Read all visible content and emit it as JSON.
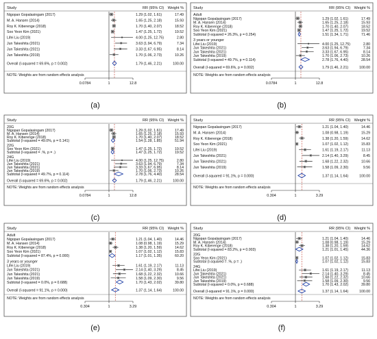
{
  "figure": {
    "panel_labels": [
      "(a)",
      "(b)",
      "(c)",
      "(d)",
      "(e)",
      "(f)"
    ]
  },
  "colors": {
    "frame": "#555555",
    "ci_line": "#222222",
    "box": "#888888",
    "diamond": "#1f3fa6",
    "null_line": "#222222",
    "dashed_line": "#c0392b",
    "text": "#111111"
  },
  "chart_data": [
    {
      "type": "forest",
      "panel": "(a)",
      "header": {
        "study": "Study",
        "rr": "RR (95% CI)",
        "weight": "Weight %"
      },
      "axis": {
        "type": "log",
        "ticks": [
          "0.0784",
          "1",
          "12.8"
        ],
        "tick_values": [
          0.0784,
          1,
          12.8
        ]
      },
      "groups": [
        {
          "label": "",
          "rows": [
            {
              "label": "Nigopan Gopalasingam (2017)",
              "rr": 1.29,
              "lo": 1.02,
              "hi": 1.61,
              "rr_text": "1.29 (1.02, 1.61)",
              "weight": "17.49"
            },
            {
              "label": "M. A. Hansen (2014)",
              "rr": 1.65,
              "lo": 1.25,
              "hi": 2.18,
              "rr_text": "1.65 (1.25, 2.18)",
              "weight": "15.93"
            },
            {
              "label": "Roy K. Kiberenge (2018)",
              "rr": 1.7,
              "lo": 1.4,
              "hi": 2.07,
              "rr_text": "1.70 (1.40, 2.07)",
              "weight": "18.52"
            },
            {
              "label": "Soo Yeon Kim (2021)",
              "rr": 1.47,
              "lo": 1.25,
              "hi": 1.72,
              "rr_text": "1.47 (1.25, 1.72)",
              "weight": "19.52"
            },
            {
              "label": "Lifei Liu (2019)",
              "rr": 4.0,
              "lo": 1.25,
              "hi": 12.75,
              "rr_text": "4.00 (1.25, 12.75)",
              "weight": "2.80"
            },
            {
              "label": "Jun Takeshita (2021)",
              "rr": 3.63,
              "lo": 1.94,
              "hi": 6.79,
              "rr_text": "3.63 (1.94, 6.79)",
              "weight": "7.34"
            },
            {
              "label": "Jun Takeshita (2021)",
              "rr": 3.33,
              "lo": 1.67,
              "hi": 6.95,
              "rr_text": "3.33 (1.67, 6.95)",
              "weight": "8.14"
            },
            {
              "label": "Jun Takeshita (2019)",
              "rr": 1.7,
              "lo": 1.06,
              "hi": 2.73,
              "rr_text": "1.70 (1.06, 2.73)",
              "weight": "10.26"
            }
          ]
        }
      ],
      "overall": {
        "label": "Overall (I-squared = 69.6%, p = 0.002)",
        "rr": 1.79,
        "lo": 1.46,
        "hi": 2.21,
        "rr_text": "1.79 (1.46, 2.21)",
        "weight": "100.00"
      },
      "note": "NOTE: Weights are from random effects analysis"
    },
    {
      "type": "forest",
      "panel": "(b)",
      "header": {
        "study": "Study",
        "rr": "RR (95% CI)",
        "weight": "Weight %"
      },
      "axis": {
        "type": "log",
        "ticks": [
          "0.0784",
          "1",
          "12.8"
        ],
        "tick_values": [
          0.0784,
          1,
          12.8
        ]
      },
      "groups": [
        {
          "label": "Adult",
          "rows": [
            {
              "label": "Nigopan Gopalasingam (2017)",
              "rr": 1.29,
              "lo": 1.02,
              "hi": 1.61,
              "rr_text": "1.29 (1.02, 1.61)",
              "weight": "17.49"
            },
            {
              "label": "M. A. Hansen (2014)",
              "rr": 1.65,
              "lo": 1.25,
              "hi": 2.18,
              "rr_text": "1.65 (1.25, 2.18)",
              "weight": "15.93"
            },
            {
              "label": "Roy K. Kiberenge (2018)",
              "rr": 1.7,
              "lo": 1.4,
              "hi": 2.07,
              "rr_text": "1.70 (1.40, 2.07)",
              "weight": "18.52"
            },
            {
              "label": "Soo Yeon Kim (2021)",
              "rr": 1.47,
              "lo": 1.25,
              "hi": 1.72,
              "rr_text": "1.47 (1.25, 1.72)",
              "weight": "19.52"
            }
          ],
          "subtotal": {
            "label": "Subtotal (I-squared = 26.3%, p = 0.254)",
            "rr": 1.51,
            "lo": 1.34,
            "hi": 1.71,
            "rr_text": "1.51 (1.34, 1.71)",
            "weight": "71.46"
          }
        },
        {
          "label": "3 years or younger",
          "rows": [
            {
              "label": "Lifei Liu (2019)",
              "rr": 4.0,
              "lo": 1.25,
              "hi": 12.75,
              "rr_text": "4.00 (1.25, 12.75)",
              "weight": "2.80"
            },
            {
              "label": "Jun Takeshita (2021)",
              "rr": 3.63,
              "lo": 1.94,
              "hi": 6.79,
              "rr_text": "3.63 (1.94, 6.79)",
              "weight": "7.34"
            },
            {
              "label": "Jun Takeshita (2021)",
              "rr": 3.33,
              "lo": 1.67,
              "hi": 6.95,
              "rr_text": "3.33 (1.67, 6.95)",
              "weight": "8.14"
            },
            {
              "label": "Jun Takeshita (2019)",
              "rr": 1.7,
              "lo": 1.06,
              "hi": 2.73,
              "rr_text": "1.70 (1.06, 2.73)",
              "weight": "10.26"
            }
          ],
          "subtotal": {
            "label": "Subtotal (I-squared = 49.7%, p = 0.114)",
            "rr": 2.78,
            "lo": 1.76,
            "hi": 4.4,
            "rr_text": "2.78 (1.76, 4.40)",
            "weight": "28.54"
          }
        }
      ],
      "overall": {
        "label": "Overall (I-squared = 69.6%, p = 0.002)",
        "rr": 1.79,
        "lo": 1.46,
        "hi": 2.21,
        "rr_text": "1.79 (1.46, 2.21)",
        "weight": "100.00"
      },
      "note": "NOTE: Weights are from random effects analysis"
    },
    {
      "type": "forest",
      "panel": "(c)",
      "header": {
        "study": "Study",
        "rr": "RR (95% CI)",
        "weight": "Weight %"
      },
      "axis": {
        "type": "log",
        "ticks": [
          "0.0784",
          "1",
          "12.8"
        ],
        "tick_values": [
          0.0784,
          1,
          12.8
        ]
      },
      "groups": [
        {
          "label": "20G",
          "rows": [
            {
              "label": "Nigopan Gopalasingam (2017)",
              "rr": 1.29,
              "lo": 1.02,
              "hi": 1.61,
              "rr_text": "1.29 (1.02, 1.61)",
              "weight": "17.49"
            },
            {
              "label": "M. A. Hansen (2014)",
              "rr": 1.65,
              "lo": 1.25,
              "hi": 2.18,
              "rr_text": "1.65 (1.25, 2.18)",
              "weight": "15.93"
            },
            {
              "label": "Roy K. Kiberenge (2018)",
              "rr": 1.7,
              "lo": 1.4,
              "hi": 2.07,
              "rr_text": "1.70 (1.40, 2.07)",
              "weight": "18.52"
            }
          ],
          "subtotal": {
            "label": "Subtotal (I-squared = 49.0%, p = 0.141)",
            "rr": 1.54,
            "lo": 1.28,
            "hi": 1.85,
            "rr_text": "1.54 (1.28, 1.85)",
            "weight": "51.94"
          }
        },
        {
          "label": "22G",
          "rows": [
            {
              "label": "Soo Yeon Kim (2021)",
              "rr": 1.47,
              "lo": 1.25,
              "hi": 1.72,
              "rr_text": "1.47 (1.25, 1.72)",
              "weight": "19.52"
            }
          ],
          "subtotal": {
            "label": "Subtotal (I-squared = .%, p = .)",
            "rr": 1.47,
            "lo": 1.25,
            "hi": 1.72,
            "rr_text": "1.47 (1.25, 1.72)",
            "weight": "19.52"
          }
        },
        {
          "label": "24G",
          "rows": [
            {
              "label": "Lifei Liu (2019)",
              "rr": 4.0,
              "lo": 1.25,
              "hi": 12.75,
              "rr_text": "4.00 (1.25, 12.75)",
              "weight": "2.80"
            },
            {
              "label": "Jun Takeshita (2021)",
              "rr": 3.63,
              "lo": 1.94,
              "hi": 6.79,
              "rr_text": "3.63 (1.94, 6.79)",
              "weight": "7.34"
            },
            {
              "label": "Jun Takeshita (2021)",
              "rr": 3.33,
              "lo": 1.67,
              "hi": 6.95,
              "rr_text": "3.33 (1.67, 6.95)",
              "weight": "8.14"
            },
            {
              "label": "Jun Takeshita (2019)",
              "rr": 1.7,
              "lo": 1.06,
              "hi": 2.73,
              "rr_text": "1.70 (1.06, 2.73)",
              "weight": "10.26"
            }
          ],
          "subtotal": {
            "label": "Subtotal (I-squared = 49.7%, p = 0.114)",
            "rr": 2.78,
            "lo": 1.76,
            "hi": 4.4,
            "rr_text": "2.78 (1.76, 4.40)",
            "weight": "28.54"
          }
        }
      ],
      "overall": {
        "label": "Overall (I-squared = 69.6%, p = 0.002)",
        "rr": 1.79,
        "lo": 1.46,
        "hi": 2.21,
        "rr_text": "1.79 (1.46, 2.21)",
        "weight": "100.00"
      },
      "note": "NOTE: Weights are from random effects analysis"
    },
    {
      "type": "forest",
      "panel": "(d)",
      "header": {
        "study": "Study",
        "rr": "RR (95% CI)",
        "weight": "Weight %"
      },
      "axis": {
        "type": "log",
        "ticks": [
          "0.304",
          "1",
          "3.29"
        ],
        "tick_values": [
          0.304,
          1,
          3.29
        ]
      },
      "groups": [
        {
          "label": "",
          "rows": [
            {
              "label": "Nigopan Gopalasingam (2017)",
              "rr": 1.21,
              "lo": 1.04,
              "hi": 1.4,
              "rr_text": "1.21 (1.04, 1.40)",
              "weight": "14.46"
            },
            {
              "label": "M. A. Hansen (2014)",
              "rr": 1.08,
              "lo": 0.98,
              "hi": 1.19,
              "rr_text": "1.08 (0.98, 1.19)",
              "weight": "15.29"
            },
            {
              "label": "Roy K. Kiberenge (2018)",
              "rr": 1.38,
              "lo": 1.2,
              "hi": 1.59,
              "rr_text": "1.38 (1.20, 1.59)",
              "weight": "14.62"
            },
            {
              "label": "Soo Yeon Kim (2021)",
              "rr": 1.07,
              "lo": 1.02,
              "hi": 1.12,
              "rr_text": "1.07 (1.02, 1.12)",
              "weight": "15.83"
            },
            {
              "label": "Lifei Liu (2019)",
              "rr": 1.61,
              "lo": 1.19,
              "hi": 2.17,
              "rr_text": "1.61 (1.19, 2.17)",
              "weight": "11.13"
            },
            {
              "label": "Jun Takeshita (2021)",
              "rr": 2.14,
              "lo": 1.4,
              "hi": 3.29,
              "rr_text": "2.14 (1.40, 3.29)",
              "weight": "8.45"
            },
            {
              "label": "Jun Takeshita (2021)",
              "rr": 1.68,
              "lo": 1.22,
              "hi": 2.32,
              "rr_text": "1.68 (1.22, 2.32)",
              "weight": "10.66"
            },
            {
              "label": "Jun Takeshita (2019)",
              "rr": 1.58,
              "lo": 1.09,
              "hi": 2.3,
              "rr_text": "1.58 (1.09, 2.30)",
              "weight": "9.56"
            }
          ]
        }
      ],
      "overall": {
        "label": "Overall (I-squared = 91.1%, p = 0.000)",
        "rr": 1.37,
        "lo": 1.14,
        "hi": 1.64,
        "rr_text": "1.37 (1.14, 1.64)",
        "weight": "100.00"
      },
      "note": "NOTE: Weights are from random effects analysis"
    },
    {
      "type": "forest",
      "panel": "(e)",
      "header": {
        "study": "Study",
        "rr": "RR (95% CI)",
        "weight": "Weight %"
      },
      "axis": {
        "type": "log",
        "ticks": [
          "0.304",
          "1",
          "3.29"
        ],
        "tick_values": [
          0.304,
          1,
          3.29
        ]
      },
      "groups": [
        {
          "label": "Adult",
          "rows": [
            {
              "label": "Nigopan Gopalasingam (2017)",
              "rr": 1.21,
              "lo": 1.04,
              "hi": 1.4,
              "rr_text": "1.21 (1.04, 1.40)",
              "weight": "14.46"
            },
            {
              "label": "M. A. Hansen (2014)",
              "rr": 1.08,
              "lo": 0.98,
              "hi": 1.19,
              "rr_text": "1.08 (0.98, 1.19)",
              "weight": "15.29"
            },
            {
              "label": "Roy K. Kiberenge (2018)",
              "rr": 1.38,
              "lo": 1.2,
              "hi": 1.59,
              "rr_text": "1.38 (1.20, 1.59)",
              "weight": "14.62"
            },
            {
              "label": "Soo Yeon Kim (2021)",
              "rr": 1.07,
              "lo": 1.02,
              "hi": 1.12,
              "rr_text": "1.07 (1.02, 1.12)",
              "weight": "15.83"
            }
          ],
          "subtotal": {
            "label": "Subtotal (I-squared = 87.4%, p = 0.000)",
            "rr": 1.17,
            "lo": 1.01,
            "hi": 1.35,
            "rr_text": "1.17 (1.01, 1.35)",
            "weight": "60.20"
          }
        },
        {
          "label": "3 years or younger",
          "rows": [
            {
              "label": "Lifei Liu (2019)",
              "rr": 1.61,
              "lo": 1.19,
              "hi": 2.17,
              "rr_text": "1.61 (1.19, 2.17)",
              "weight": "11.13"
            },
            {
              "label": "Jun Takeshita (2021)",
              "rr": 2.14,
              "lo": 1.4,
              "hi": 3.29,
              "rr_text": "2.14 (1.40, 3.29)",
              "weight": "8.45"
            },
            {
              "label": "Jun Takeshita (2021)",
              "rr": 1.68,
              "lo": 1.22,
              "hi": 2.32,
              "rr_text": "1.68 (1.22, 2.32)",
              "weight": "10.66"
            },
            {
              "label": "Jun Takeshita (2019)",
              "rr": 1.58,
              "lo": 1.09,
              "hi": 2.3,
              "rr_text": "1.58 (1.09, 2.30)",
              "weight": "9.56"
            }
          ],
          "subtotal": {
            "label": "Subtotal (I-squared = 0.0%, p = 0.688)",
            "rr": 1.7,
            "lo": 1.43,
            "hi": 2.02,
            "rr_text": "1.70 (1.43, 2.02)",
            "weight": "39.80"
          }
        }
      ],
      "overall": {
        "label": "Overall (I-squared = 91.1%, p = 0.000)",
        "rr": 1.37,
        "lo": 1.14,
        "hi": 1.64,
        "rr_text": "1.37 (1.14, 1.64)",
        "weight": "100.00"
      },
      "note": "NOTE: Weights are from random effects analysis"
    },
    {
      "type": "forest",
      "panel": "(f)",
      "header": {
        "study": "Study",
        "rr": "RR (95% CI)",
        "weight": "Weight %"
      },
      "axis": {
        "type": "log",
        "ticks": [
          "0.304",
          "1",
          "3.29"
        ],
        "tick_values": [
          0.304,
          1,
          3.29
        ]
      },
      "groups": [
        {
          "label": "20G",
          "rows": [
            {
              "label": "Nigopan Gopalasingam (2017)",
              "rr": 1.21,
              "lo": 1.04,
              "hi": 1.4,
              "rr_text": "1.21 (1.04, 1.40)",
              "weight": "14.46"
            },
            {
              "label": "M. A. Hansen (2014)",
              "rr": 1.08,
              "lo": 0.98,
              "hi": 1.19,
              "rr_text": "1.08 (0.98, 1.19)",
              "weight": "15.29"
            },
            {
              "label": "Roy K. Kiberenge (2018)",
              "rr": 1.38,
              "lo": 1.2,
              "hi": 1.59,
              "rr_text": "1.38 (1.20, 1.59)",
              "weight": "14.62"
            }
          ],
          "subtotal": {
            "label": "Subtotal (I-squared = 83.2%, p = 0.003)",
            "rr": 1.21,
            "lo": 1.01,
            "hi": 1.45,
            "rr_text": "1.21 (1.01, 1.45)",
            "weight": "44.36"
          }
        },
        {
          "label": "22G",
          "rows": [
            {
              "label": "Soo Yeon Kim (2021)",
              "rr": 1.07,
              "lo": 1.02,
              "hi": 1.12,
              "rr_text": "1.07 (1.02, 1.12)",
              "weight": "15.83"
            }
          ],
          "subtotal": {
            "label": "Subtotal (I-squared = .%, p = .)",
            "rr": 1.07,
            "lo": 1.02,
            "hi": 1.12,
            "rr_text": "1.07 (1.02, 1.12)",
            "weight": "15.83"
          }
        },
        {
          "label": "24G",
          "rows": [
            {
              "label": "Lifei Liu (2019)",
              "rr": 1.61,
              "lo": 1.19,
              "hi": 2.17,
              "rr_text": "1.61 (1.19, 2.17)",
              "weight": "11.13"
            },
            {
              "label": "Jun Takeshita (2021)",
              "rr": 2.14,
              "lo": 1.4,
              "hi": 3.29,
              "rr_text": "2.14 (1.40, 3.29)",
              "weight": "8.45"
            },
            {
              "label": "Jun Takeshita (2021)",
              "rr": 1.68,
              "lo": 1.22,
              "hi": 2.32,
              "rr_text": "1.68 (1.22, 2.32)",
              "weight": "10.66"
            },
            {
              "label": "Jun Takeshita (2019)",
              "rr": 1.58,
              "lo": 1.09,
              "hi": 2.3,
              "rr_text": "1.58 (1.09, 2.30)",
              "weight": "9.56"
            }
          ],
          "subtotal": {
            "label": "Subtotal (I-squared = 0.0%, p = 0.688)",
            "rr": 1.7,
            "lo": 1.43,
            "hi": 2.02,
            "rr_text": "1.70 (1.43, 2.02)",
            "weight": "39.80"
          }
        }
      ],
      "overall": {
        "label": "Overall (I-squared = 91.1%, p = 0.000)",
        "rr": 1.37,
        "lo": 1.14,
        "hi": 1.64,
        "rr_text": "1.37 (1.14, 1.64)",
        "weight": "100.00"
      },
      "note": "NOTE: Weights are from random effects analysis"
    }
  ]
}
